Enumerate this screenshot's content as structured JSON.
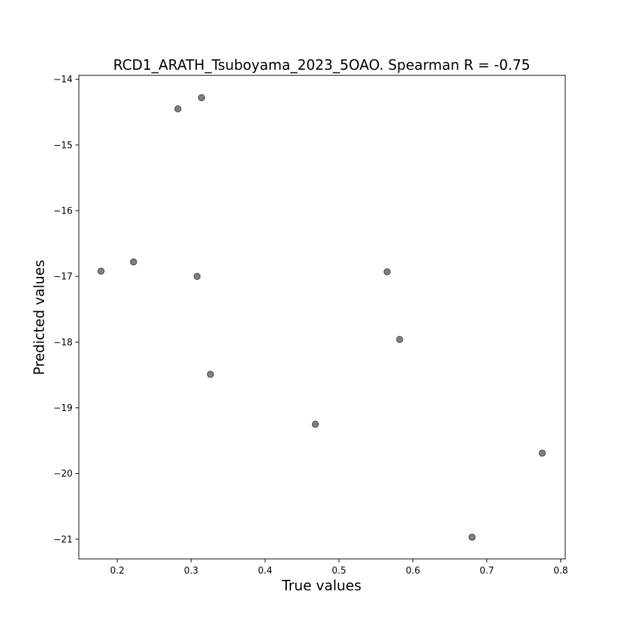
{
  "chart_data": {
    "type": "scatter",
    "title": "RCD1_ARATH_Tsuboyama_2023_5OAO. Spearman R = -0.75",
    "xlabel": "True values",
    "ylabel": "Predicted values",
    "xlim": [
      0.148,
      0.806
    ],
    "ylim": [
      -21.3,
      -13.94
    ],
    "xticks": [
      0.2,
      0.3,
      0.4,
      0.5,
      0.6,
      0.7,
      0.8
    ],
    "xtick_labels": [
      "0.2",
      "0.3",
      "0.4",
      "0.5",
      "0.6",
      "0.7",
      "0.8"
    ],
    "yticks": [
      -14,
      -15,
      -16,
      -17,
      -18,
      -19,
      -20,
      -21
    ],
    "ytick_labels": [
      "−14",
      "−15",
      "−16",
      "−17",
      "−18",
      "−19",
      "−20",
      "−21"
    ],
    "grid": false,
    "point_color": "#808080",
    "point_edge_color": "#404040",
    "points": [
      {
        "x": 0.178,
        "y": -16.92
      },
      {
        "x": 0.222,
        "y": -16.78
      },
      {
        "x": 0.282,
        "y": -14.45
      },
      {
        "x": 0.314,
        "y": -14.28
      },
      {
        "x": 0.308,
        "y": -17.0
      },
      {
        "x": 0.326,
        "y": -18.49
      },
      {
        "x": 0.468,
        "y": -19.25
      },
      {
        "x": 0.565,
        "y": -16.93
      },
      {
        "x": 0.582,
        "y": -17.96
      },
      {
        "x": 0.68,
        "y": -20.97
      },
      {
        "x": 0.775,
        "y": -19.69
      }
    ]
  }
}
